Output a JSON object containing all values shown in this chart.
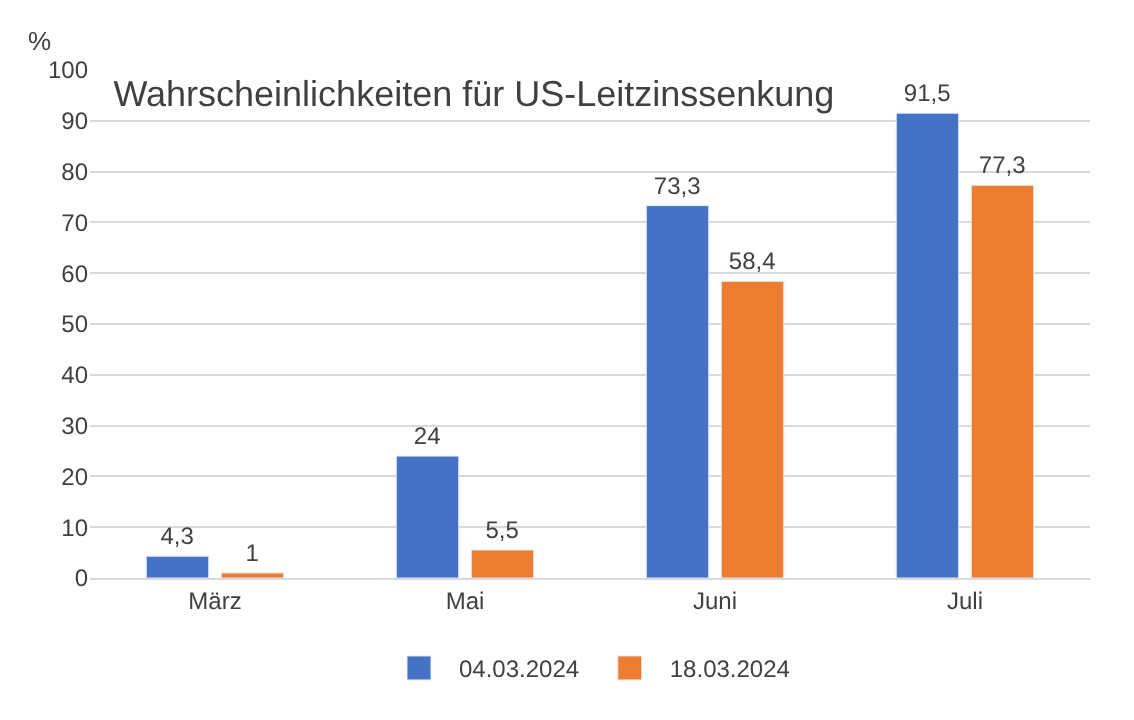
{
  "chart_data": {
    "type": "bar",
    "title": "Wahrscheinlichkeiten für US-Leitzinssenkung",
    "ylabel": "%",
    "categories": [
      "März",
      "Mai",
      "Juni",
      "Juli"
    ],
    "series": [
      {
        "name": "04.03.2024",
        "color": "#4472c4",
        "values": [
          4.3,
          24,
          73.3,
          91.5
        ],
        "value_labels": [
          "4,3",
          "24",
          "73,3",
          "91,5"
        ]
      },
      {
        "name": "18.03.2024",
        "color": "#ed7d31",
        "values": [
          1,
          5.5,
          58.4,
          77.3
        ],
        "value_labels": [
          "1",
          "5,5",
          "58,4",
          "77,3"
        ]
      }
    ],
    "ylim": [
      0,
      100
    ],
    "yticks": [
      0,
      10,
      20,
      30,
      40,
      50,
      60,
      70,
      80,
      90,
      100
    ],
    "grid": "y",
    "legend": "bottom"
  }
}
